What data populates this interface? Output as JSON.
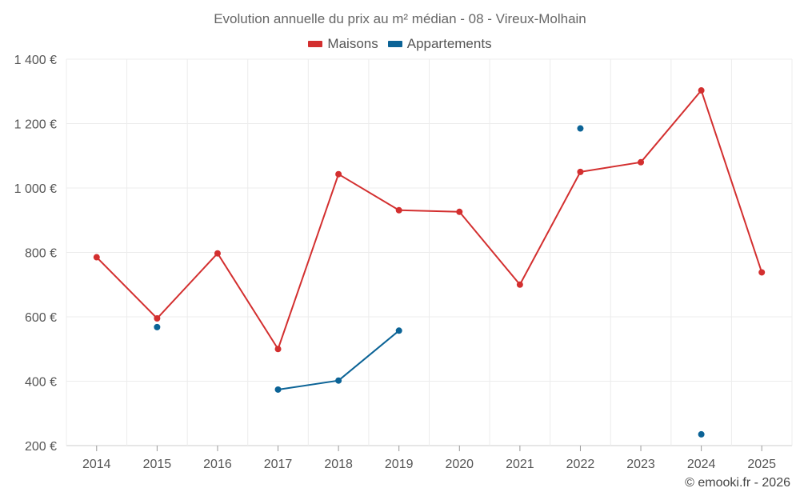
{
  "chart_data": {
    "type": "line",
    "title": "Evolution annuelle du prix au m² médian - 08 - Vireux-Molhain",
    "categories": [
      "2014",
      "2015",
      "2016",
      "2017",
      "2018",
      "2019",
      "2020",
      "2021",
      "2022",
      "2023",
      "2024",
      "2025"
    ],
    "ylim": [
      200,
      1400
    ],
    "yticks": [
      200,
      400,
      600,
      800,
      1000,
      1200,
      1400
    ],
    "ytick_labels": [
      "200 €",
      "400 €",
      "600 €",
      "800 €",
      "1 000 €",
      "1 200 €",
      "1 400 €"
    ],
    "xlabel": "",
    "ylabel": "",
    "grid": true,
    "legend_position": "top-center",
    "series": [
      {
        "name": "Maisons",
        "color": "#d32f2f",
        "values": [
          785,
          595,
          797,
          500,
          1043,
          931,
          926,
          700,
          1050,
          1080,
          1303,
          738
        ]
      },
      {
        "name": "Appartements",
        "color": "#0b6396",
        "values": [
          null,
          568,
          null,
          374,
          402,
          557,
          null,
          null,
          1185,
          null,
          235,
          null
        ]
      }
    ]
  },
  "credit": "© emooki.fr - 2026"
}
